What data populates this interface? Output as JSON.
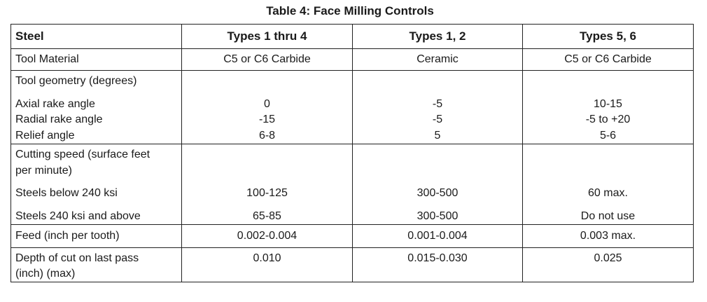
{
  "title": "Table 4:  Face Milling Controls",
  "headers": [
    "Steel",
    "Types 1 thru 4",
    "Types 1, 2",
    "Types 5, 6"
  ],
  "tool_material": {
    "label": "Tool Material",
    "values": [
      "C5 or C6 Carbide",
      "Ceramic",
      "C5 or C6 Carbide"
    ]
  },
  "tool_geometry": {
    "label": "Tool geometry (degrees)",
    "rows": [
      {
        "label": "Axial rake angle",
        "values": [
          "0",
          "-5",
          "10-15"
        ]
      },
      {
        "label": "Radial rake angle",
        "values": [
          "-15",
          "-5",
          "-5 to +20"
        ]
      },
      {
        "label": "Relief angle",
        "values": [
          "6-8",
          "5",
          "5-6"
        ]
      }
    ]
  },
  "cutting_speed": {
    "label_line1": "Cutting speed (surface feet",
    "label_line2": "per minute)",
    "rows": [
      {
        "label": "Steels below 240 ksi",
        "values": [
          "100-125",
          "300-500",
          "60 max."
        ]
      },
      {
        "label": "Steels 240 ksi and above",
        "values": [
          "65-85",
          "300-500",
          "Do not use"
        ]
      }
    ]
  },
  "feed": {
    "label": "Feed (inch per tooth)",
    "values": [
      "0.002-0.004",
      "0.001-0.004",
      "0.003 max."
    ]
  },
  "depth_of_cut": {
    "label_line1": "Depth of cut on last pass",
    "label_line2": "(inch) (max)",
    "values": [
      "0.010",
      "0.015-0.030",
      "0.025"
    ]
  }
}
